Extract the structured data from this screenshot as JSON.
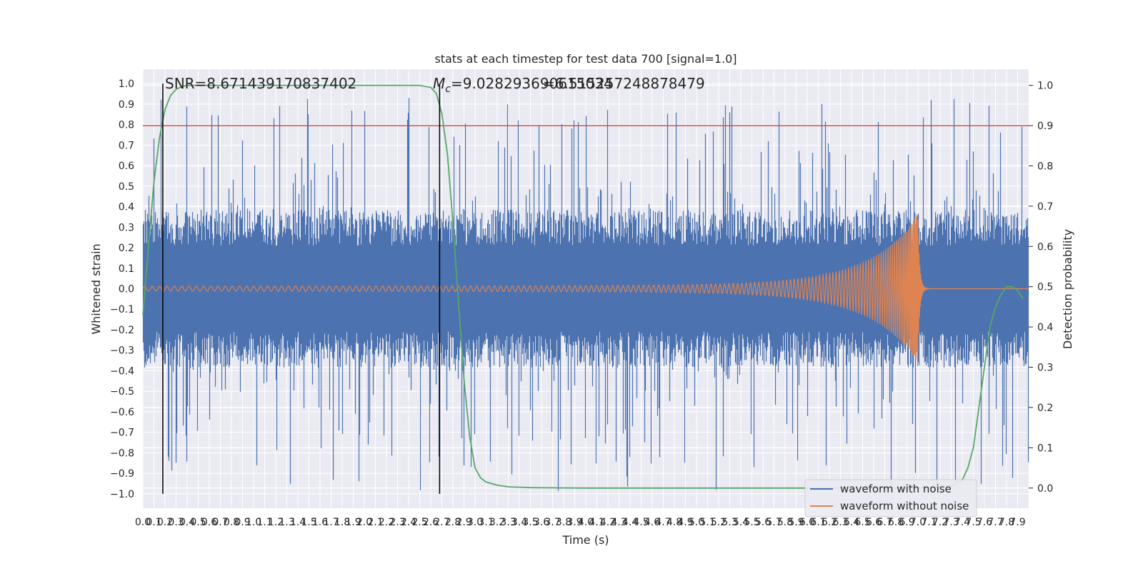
{
  "chart_data": {
    "type": "line",
    "title": "stats at each timestep for test data 700 [signal=1.0]",
    "xlabel": "Time (s)",
    "ylabel_left": "Whitened strain",
    "ylabel_right": "Detection probability",
    "xlim": [
      0.0,
      8.0
    ],
    "ylim_left": [
      -1.07,
      1.07
    ],
    "ylim_right": [
      -0.05,
      1.04
    ],
    "x_ticks": [
      "0.0",
      "0.1",
      "0.2",
      "0.3",
      "0.4",
      "0.5",
      "0.6",
      "0.7",
      "0.8",
      "0.9",
      "1.0",
      "1.1",
      "1.2",
      "1.3",
      "1.4",
      "1.5",
      "1.6",
      "1.7",
      "1.8",
      "1.9",
      "2.0",
      "2.1",
      "2.2",
      "2.3",
      "2.4",
      "2.5",
      "2.6",
      "2.7",
      "2.8",
      "2.9",
      "3.0",
      "3.1",
      "3.2",
      "3.3",
      "3.4",
      "3.5",
      "3.6",
      "3.7",
      "3.8",
      "3.9",
      "4.0",
      "4.1",
      "4.2",
      "4.3",
      "4.4",
      "4.5",
      "4.6",
      "4.7",
      "4.8",
      "4.9",
      "5.0",
      "5.1",
      "5.2",
      "5.3",
      "5.4",
      "5.5",
      "5.6",
      "5.7",
      "5.8",
      "5.9",
      "6.0",
      "6.1",
      "6.2",
      "6.3",
      "6.4",
      "6.5",
      "6.6",
      "6.7",
      "6.8",
      "6.9",
      "7.0",
      "7.1",
      "7.2",
      "7.3",
      "7.4",
      "7.5",
      "7.6",
      "7.7",
      "7.8",
      "7.9"
    ],
    "y_ticks_left": [
      "1.0",
      "0.9",
      "0.8",
      "0.7",
      "0.6",
      "0.5",
      "0.4",
      "0.3",
      "0.2",
      "0.1",
      "0.0",
      "-0.1",
      "-0.2",
      "-0.3",
      "-0.4",
      "-0.5",
      "-0.6",
      "-0.7",
      "-0.8",
      "-0.9",
      "-1.0"
    ],
    "y_ticks_right": [
      "1.0",
      "0.9",
      "0.8",
      "0.7",
      "0.6",
      "0.5",
      "0.4",
      "0.3",
      "0.2",
      "0.1",
      "0.0"
    ],
    "annotations": {
      "snr": "SNR=8.671439170837402",
      "mc_prefix": "M",
      "mc_sub": "c",
      "mc_value": "=9.028293690615034",
      "overlap": "=6.51525724887847​9"
    },
    "threshold": {
      "value": 0.9,
      "axis": "right",
      "color": "#c44e52"
    },
    "vlines": [
      {
        "x": 0.18,
        "ymin": -1.0,
        "ymax": 1.0,
        "color": "#000000"
      },
      {
        "x": 2.68,
        "ymin": -1.0,
        "ymax": 1.0,
        "color": "#000000"
      }
    ],
    "series": [
      {
        "name": "waveform with noise",
        "color": "#4c72b0",
        "axis": "left",
        "kind": "noise",
        "amplitude_typical": 0.35,
        "peak_max": 0.93,
        "trough_min": -0.99
      },
      {
        "name": "waveform without noise",
        "color": "#dd8452",
        "axis": "left",
        "kind": "chirp",
        "start_x": 0.0,
        "merger_x": 7.0,
        "amp_start": 0.012,
        "amp_merger": 0.33,
        "amp_min_merger": -0.27
      },
      {
        "axis": "right",
        "color": "#55a868",
        "kind": "probability",
        "x": [
          0.0,
          0.05,
          0.1,
          0.15,
          0.2,
          0.25,
          0.3,
          0.35,
          0.4,
          0.5,
          0.6,
          1.0,
          2.0,
          2.5,
          2.6,
          2.65,
          2.7,
          2.75,
          2.8,
          2.85,
          2.9,
          2.95,
          3.0,
          3.05,
          3.1,
          3.2,
          3.3,
          3.5,
          4.0,
          5.0,
          6.0,
          7.0,
          7.3,
          7.4,
          7.45,
          7.5,
          7.55,
          7.6,
          7.65,
          7.7,
          7.75,
          7.8,
          7.85,
          7.9,
          7.95
        ],
        "values": [
          0.43,
          0.6,
          0.76,
          0.87,
          0.94,
          0.975,
          0.99,
          0.997,
          1.0,
          1.0,
          1.0,
          1.0,
          1.0,
          1.0,
          0.995,
          0.98,
          0.93,
          0.83,
          0.66,
          0.46,
          0.27,
          0.13,
          0.05,
          0.025,
          0.015,
          0.007,
          0.003,
          0.001,
          0.0,
          0.0,
          0.0,
          0.0,
          0.005,
          0.02,
          0.05,
          0.1,
          0.2,
          0.3,
          0.4,
          0.45,
          0.48,
          0.5,
          0.5,
          0.49,
          0.47
        ]
      }
    ],
    "legend": {
      "placement": "lower-right",
      "entries": [
        "waveform with noise",
        "waveform without noise"
      ]
    },
    "grid": true
  }
}
